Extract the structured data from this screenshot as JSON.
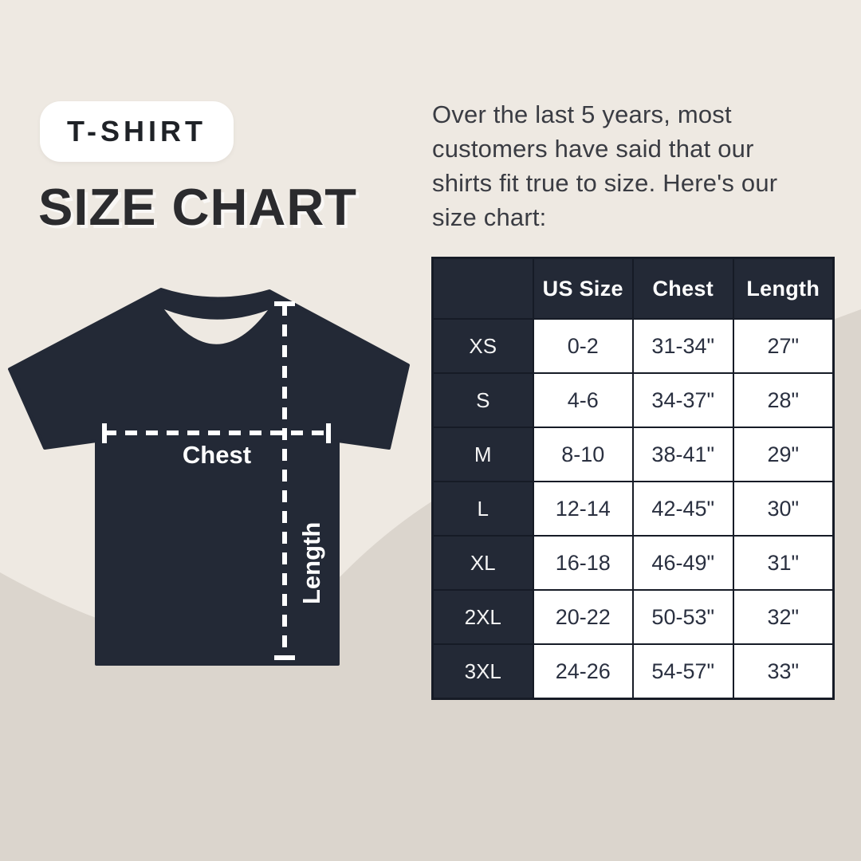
{
  "badge": {
    "label": "T-SHIRT"
  },
  "title": "SIZE CHART",
  "intro": {
    "lines": [
      "Over the last 5 years, most",
      "customers have said that our",
      "shirts fit true to size. Here's our",
      "size chart:"
    ]
  },
  "diagram": {
    "chest_label": "Chest",
    "length_label": "Length"
  },
  "size_table": {
    "columns": [
      "",
      "US Size",
      "Chest",
      "Length"
    ],
    "rows": [
      {
        "size": "XS",
        "us_size": "0-2",
        "chest": "31-34\"",
        "length": "27\""
      },
      {
        "size": "S",
        "us_size": "4-6",
        "chest": "34-37\"",
        "length": "28\""
      },
      {
        "size": "M",
        "us_size": "8-10",
        "chest": "38-41\"",
        "length": "29\""
      },
      {
        "size": "L",
        "us_size": "12-14",
        "chest": "42-45\"",
        "length": "30\""
      },
      {
        "size": "XL",
        "us_size": "16-18",
        "chest": "46-49\"",
        "length": "31\""
      },
      {
        "size": "2XL",
        "us_size": "20-22",
        "chest": "50-53\"",
        "length": "32\""
      },
      {
        "size": "3XL",
        "us_size": "24-26",
        "chest": "54-57\"",
        "length": "33\""
      }
    ]
  },
  "colors": {
    "background_top": "#EEE9E2",
    "background_bottom": "#DBD5CD",
    "navy": "#232936",
    "grid_line": "#161B26",
    "title_text": "#2B2B2E",
    "body_text": "#3A3C43",
    "badge_background": "#FFFFFF",
    "measure_line": "#FFFFFF"
  }
}
